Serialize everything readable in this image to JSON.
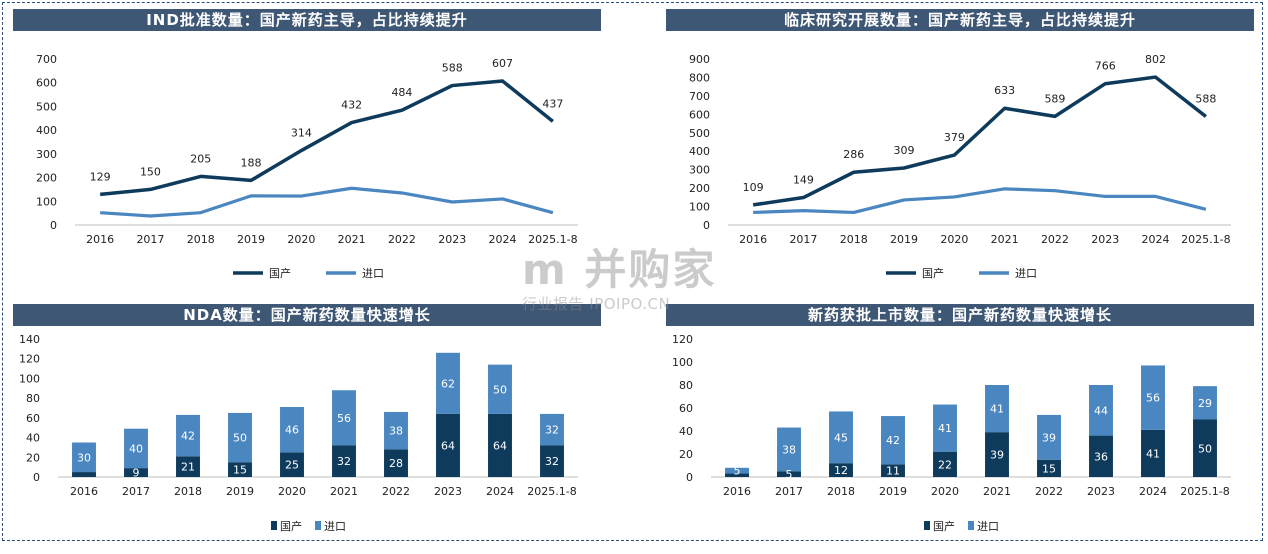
{
  "colors": {
    "domestic": "#0e3a5c",
    "import": "#4a86c0",
    "title_bg": "#3e5775",
    "axis": "#bfbfbf"
  },
  "watermark": {
    "main": "m 并购家",
    "sub": "行业报告 IPOIPO.CN"
  },
  "chart_data": [
    {
      "type": "line",
      "title": "IND批准数量：国产新药主导，占比持续提升",
      "categories": [
        "2016",
        "2017",
        "2018",
        "2019",
        "2020",
        "2021",
        "2022",
        "2023",
        "2024",
        "2025.1-8"
      ],
      "series": [
        {
          "name": "国产",
          "values": [
            129,
            150,
            205,
            188,
            314,
            432,
            484,
            588,
            607,
            437
          ],
          "labels": [
            "129",
            "150",
            "205",
            "188",
            "314",
            "432",
            "484",
            "588",
            "607",
            "437"
          ]
        },
        {
          "name": "进口",
          "values": [
            52,
            38,
            52,
            123,
            122,
            155,
            135,
            97,
            110,
            52
          ]
        }
      ],
      "ylim": [
        0,
        700
      ],
      "yticks": [
        "0",
        "100",
        "200",
        "300",
        "400",
        "500",
        "600",
        "700"
      ],
      "legend": "bottom"
    },
    {
      "type": "line",
      "title": "临床研究开展数量：国产新药主导，占比持续提升",
      "categories": [
        "2016",
        "2017",
        "2018",
        "2019",
        "2020",
        "2021",
        "2022",
        "2023",
        "2024",
        "2025.1-8"
      ],
      "series": [
        {
          "name": "国产",
          "values": [
            109,
            149,
            286,
            309,
            379,
            633,
            589,
            766,
            802,
            588
          ],
          "labels": [
            "109",
            "149",
            "286",
            "309",
            "379",
            "633",
            "589",
            "766",
            "802",
            "588"
          ]
        },
        {
          "name": "进口",
          "values": [
            68,
            78,
            68,
            136,
            152,
            196,
            186,
            155,
            155,
            85
          ]
        }
      ],
      "ylim": [
        0,
        900
      ],
      "yticks": [
        "0",
        "100",
        "200",
        "300",
        "400",
        "500",
        "600",
        "700",
        "800",
        "900"
      ],
      "legend": "bottom"
    },
    {
      "type": "bar",
      "stacked": true,
      "title": "NDA数量：国产新药数量快速增长",
      "categories": [
        "2016",
        "2017",
        "2018",
        "2019",
        "2020",
        "2021",
        "2022",
        "2023",
        "2024",
        "2025.1-8"
      ],
      "series": [
        {
          "name": "国产",
          "values": [
            5,
            9,
            21,
            15,
            25,
            32,
            28,
            64,
            64,
            32
          ],
          "labels": [
            "",
            "9",
            "21",
            "15",
            "25",
            "32",
            "28",
            "64",
            "64",
            "32"
          ]
        },
        {
          "name": "进口",
          "values": [
            30,
            40,
            42,
            50,
            46,
            56,
            38,
            62,
            50,
            32
          ],
          "labels": [
            "30",
            "40",
            "42",
            "50",
            "46",
            "56",
            "38",
            "62",
            "50",
            "32"
          ]
        }
      ],
      "ylim": [
        0,
        140
      ],
      "yticks": [
        "0",
        "20",
        "40",
        "60",
        "80",
        "100",
        "120",
        "140"
      ],
      "legend": "bottom"
    },
    {
      "type": "bar",
      "stacked": true,
      "title": "新药获批上市数量：国产新药数量快速增长",
      "categories": [
        "2016",
        "2017",
        "2018",
        "2019",
        "2020",
        "2021",
        "2022",
        "2023",
        "2024",
        "2025.1-8"
      ],
      "series": [
        {
          "name": "国产",
          "values": [
            3,
            5,
            12,
            11,
            22,
            39,
            15,
            36,
            41,
            50
          ],
          "labels": [
            "",
            "5",
            "12",
            "11",
            "22",
            "39",
            "15",
            "36",
            "41",
            "50"
          ]
        },
        {
          "name": "进口",
          "values": [
            5,
            38,
            45,
            42,
            41,
            41,
            39,
            44,
            56,
            29
          ],
          "labels": [
            "5",
            "38",
            "45",
            "42",
            "41",
            "41",
            "39",
            "44",
            "56",
            "29"
          ]
        }
      ],
      "ylim": [
        0,
        120
      ],
      "yticks": [
        "0",
        "20",
        "40",
        "60",
        "80",
        "100",
        "120"
      ],
      "legend": "bottom"
    }
  ]
}
